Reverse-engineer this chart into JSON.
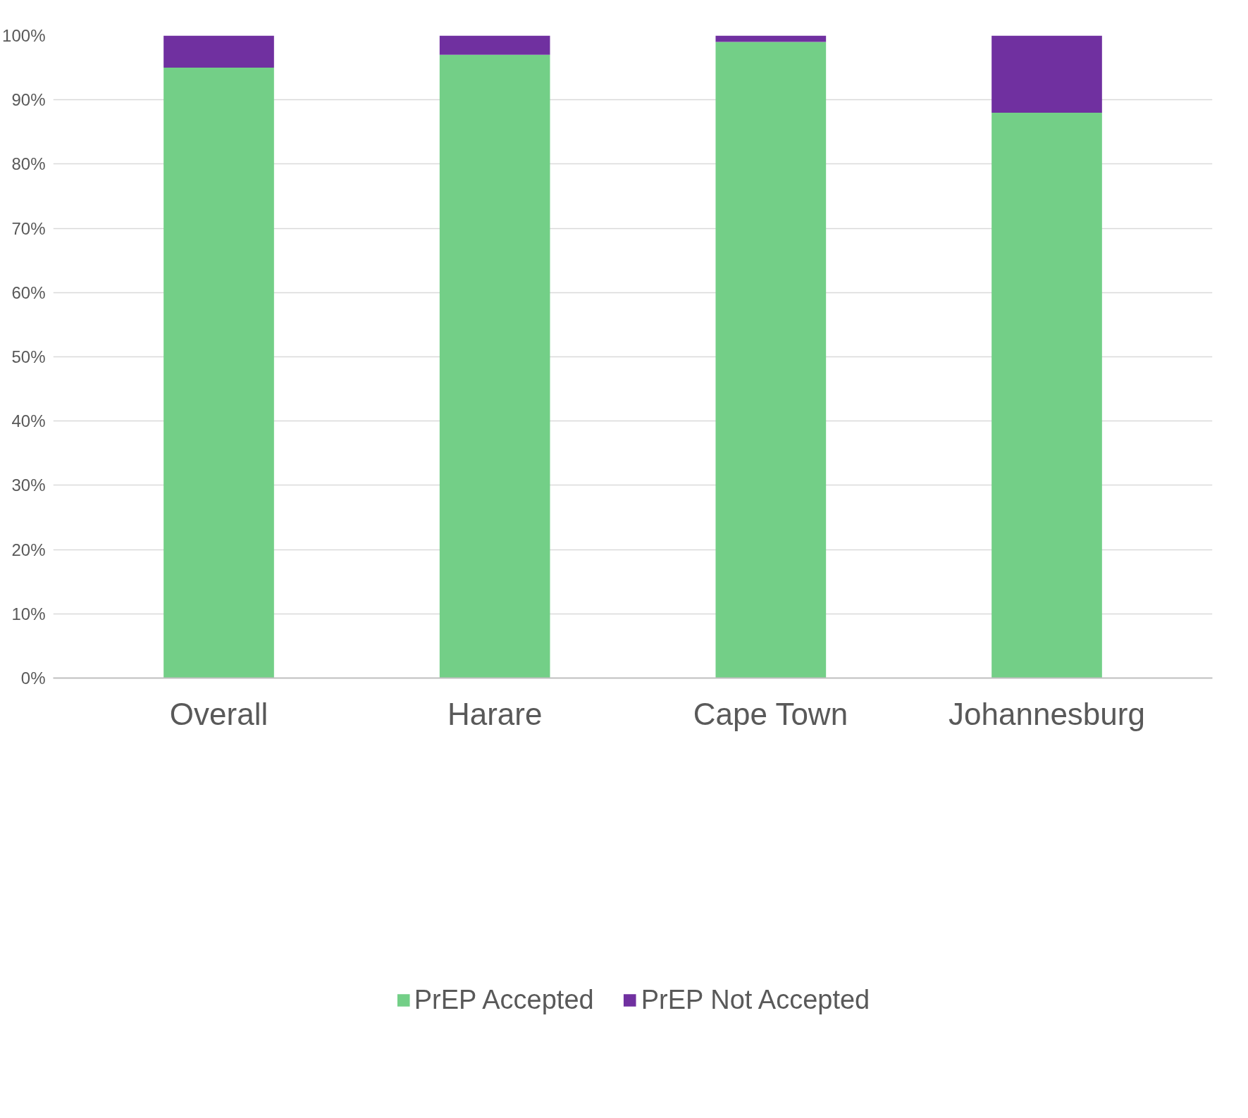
{
  "chart_data": {
    "type": "bar",
    "stacked": true,
    "categories": [
      "Overall",
      "Harare",
      "Cape Town",
      "Johannesburg"
    ],
    "series": [
      {
        "name": "PrEP Accepted",
        "color": "#73cf87",
        "values": [
          95,
          97,
          99,
          88
        ]
      },
      {
        "name": "PrEP Not Accepted",
        "color": "#7030a0",
        "values": [
          5,
          3,
          1,
          12
        ]
      }
    ],
    "ylim": [
      0,
      100
    ],
    "yticks": [
      {
        "value": 0,
        "label": "0%"
      },
      {
        "value": 10,
        "label": "10%"
      },
      {
        "value": 20,
        "label": "20%"
      },
      {
        "value": 30,
        "label": "30%"
      },
      {
        "value": 40,
        "label": "40%"
      },
      {
        "value": 50,
        "label": "50%"
      },
      {
        "value": 60,
        "label": "60%"
      },
      {
        "value": 70,
        "label": "70%"
      },
      {
        "value": 80,
        "label": "80%"
      },
      {
        "value": 90,
        "label": "90%"
      },
      {
        "value": 100,
        "label": "100%"
      }
    ],
    "grid": "y",
    "legend": "bottom"
  }
}
